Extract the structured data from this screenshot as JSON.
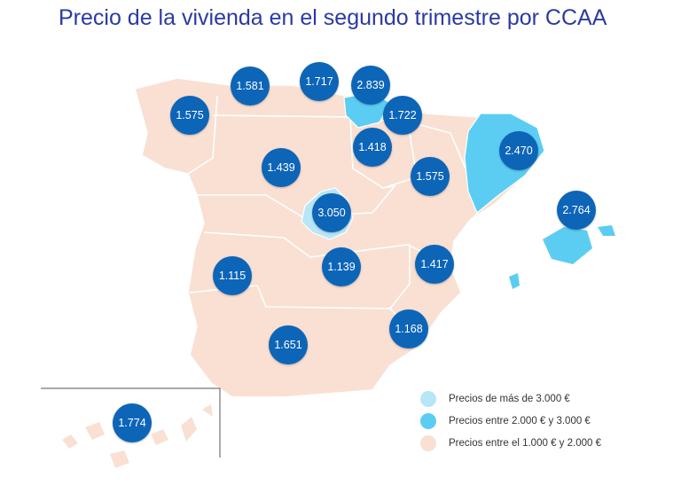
{
  "title": "Precio de la vivienda en el segundo trimestre por CCAA",
  "colors": {
    "tier_over_3000": "#b7e7f7",
    "tier_2000_3000": "#5ccdf2",
    "tier_1000_2000": "#f9e0d3",
    "bubble": "#0d65b8"
  },
  "regions": {
    "galicia": "1.575",
    "asturias": "1.581",
    "cantabria": "1.717",
    "pais_vasco": "2.839",
    "navarra": "1.722",
    "la_rioja": "1.418",
    "castilla_y_leon": "1.439",
    "aragon": "1.575",
    "cataluna": "2.470",
    "madrid": "3.050",
    "baleares": "2.764",
    "extremadura": "1.115",
    "castilla_la_mancha": "1.139",
    "valencia": "1.417",
    "murcia": "1.168",
    "andalucia": "1.651",
    "canarias": "1.774"
  },
  "legend": {
    "items": [
      {
        "label": "Precios de más de 3.000 €",
        "color": "#b7e7f7"
      },
      {
        "label": "Precios entre 2.000 € y 3.000 €",
        "color": "#5ccdf2"
      },
      {
        "label": "Precios entre el 1.000 € y 2.000 €",
        "color": "#f9e0d3"
      }
    ]
  }
}
